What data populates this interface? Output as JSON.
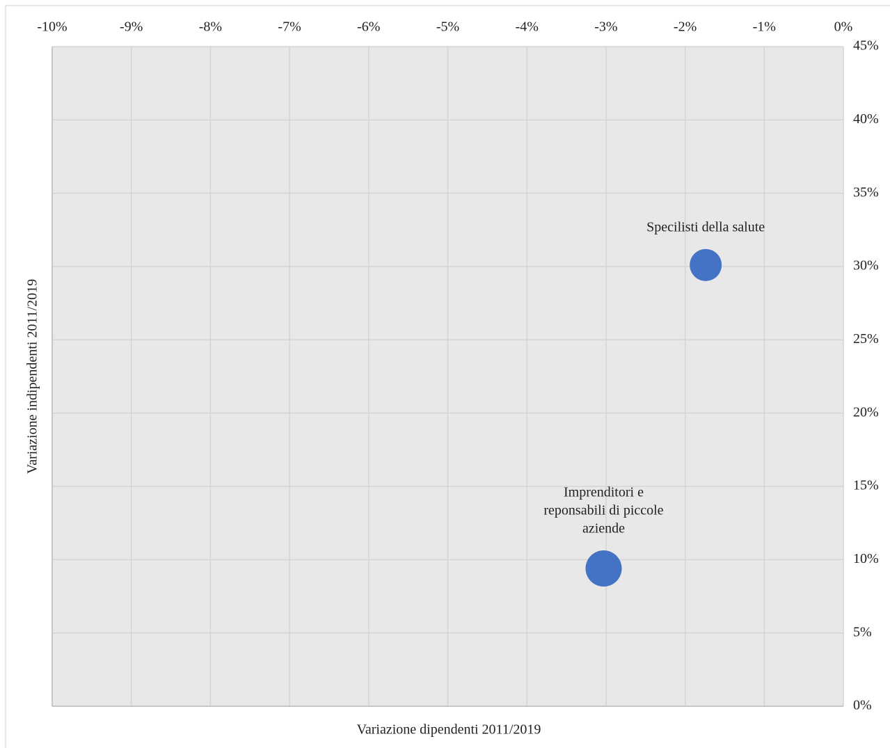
{
  "chart_data": {
    "type": "bubble",
    "x_label": "Variazione dipendenti 2011/2019",
    "y_label": "Variazione indipendenti 2011/2019",
    "xlim": [
      -10,
      0
    ],
    "ylim": [
      0,
      45
    ],
    "xticks": [
      {
        "value": -10,
        "label": "-10%"
      },
      {
        "value": -9,
        "label": "-9%"
      },
      {
        "value": -8,
        "label": "-8%"
      },
      {
        "value": -7,
        "label": "-7%"
      },
      {
        "value": -6,
        "label": "-6%"
      },
      {
        "value": -5,
        "label": "-5%"
      },
      {
        "value": -4,
        "label": "-4%"
      },
      {
        "value": -3,
        "label": "-3%"
      },
      {
        "value": -2,
        "label": "-2%"
      },
      {
        "value": -1,
        "label": "-1%"
      },
      {
        "value": 0,
        "label": "0%"
      }
    ],
    "yticks": [
      {
        "value": 0,
        "label": "0%"
      },
      {
        "value": 5,
        "label": "5%"
      },
      {
        "value": 10,
        "label": "10%"
      },
      {
        "value": 15,
        "label": "15%"
      },
      {
        "value": 20,
        "label": "20%"
      },
      {
        "value": 25,
        "label": "25%"
      },
      {
        "value": 30,
        "label": "30%"
      },
      {
        "value": 35,
        "label": "35%"
      },
      {
        "value": 40,
        "label": "40%"
      },
      {
        "value": 45,
        "label": "45%"
      }
    ],
    "grid": true,
    "series": [
      {
        "color": "#4472c4",
        "x": [
          -1.74,
          -3.03
        ],
        "values": [
          30.1,
          9.4
        ],
        "sizes": [
          78,
          100
        ],
        "labels": [
          [
            "Specilisti della salute"
          ],
          [
            "Imprenditori e",
            "reponsabili di piccole",
            "aziende"
          ]
        ]
      }
    ]
  }
}
